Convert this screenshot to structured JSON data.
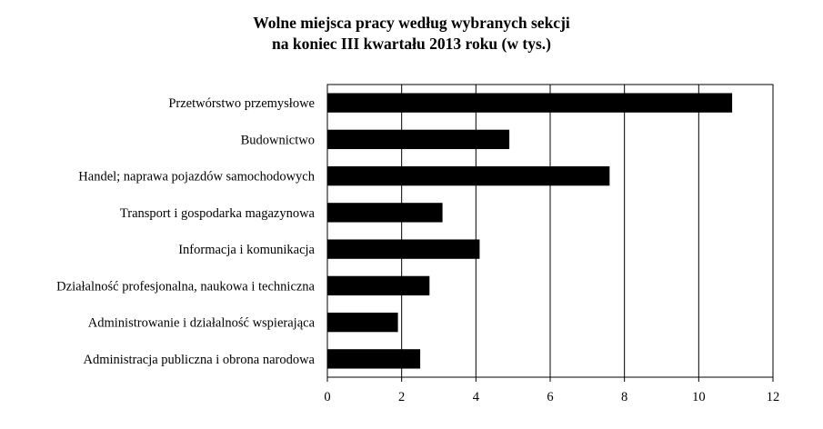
{
  "chart_data": {
    "type": "bar",
    "orientation": "horizontal",
    "title_line1": "Wolne miejsca pracy według wybranych sekcji",
    "title_line2": "na koniec III kwartału 2013 roku (w tys.)",
    "xlabel": "",
    "ylabel": "",
    "categories": [
      "Przetwórstwo przemysłowe",
      "Budownictwo",
      "Handel; naprawa pojazdów samochodowych",
      "Transport i gospodarka magazynowa",
      "Informacja i komunikacja",
      "Działalność profesjonalna, naukowa i techniczna",
      "Administrowanie i działalność wspierająca",
      "Administracja publiczna i obrona narodowa"
    ],
    "values": [
      10.9,
      4.9,
      7.6,
      3.1,
      4.1,
      2.75,
      1.9,
      2.5
    ],
    "xlim": [
      0,
      12
    ],
    "xticks": [
      "0",
      "2",
      "4",
      "6",
      "8",
      "10",
      "12"
    ],
    "grid": "vertical",
    "legend": "none",
    "bar_color": "#000000"
  }
}
